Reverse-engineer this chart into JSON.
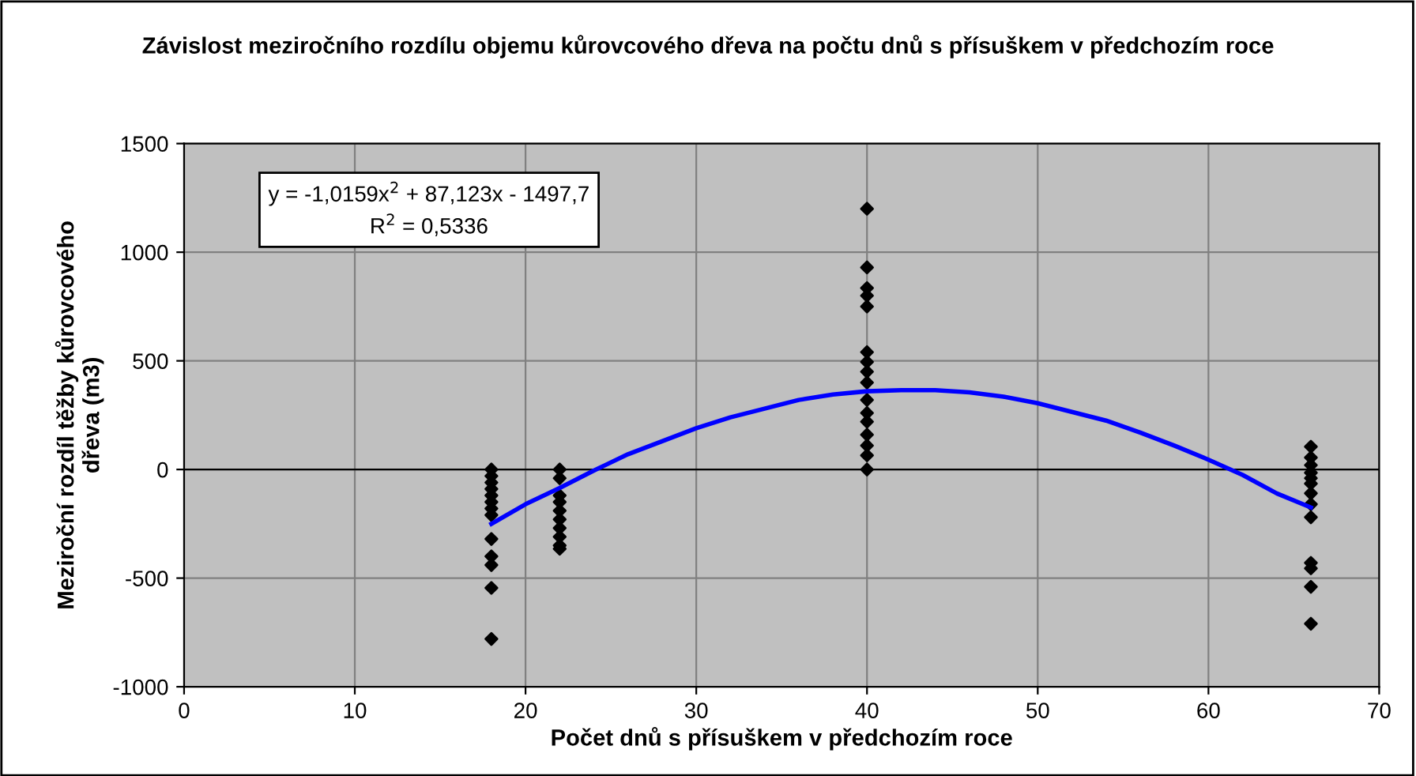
{
  "chart_data": {
    "type": "scatter",
    "title": "Závislost meziročního rozdílu objemu kůrovcového dřeva na počtu dnů s přísuškem v předchozím roce",
    "xlabel": "Počet dnů s přísuškem v předchozím roce",
    "ylabel": "Meziroční rozdíl těžby kůrovcového dřeva (m3)",
    "xlim": [
      0,
      70
    ],
    "xticks": [
      0,
      10,
      20,
      30,
      40,
      50,
      60,
      70
    ],
    "ylim": [
      -1000,
      1500
    ],
    "yticks": [
      -1000,
      -500,
      0,
      500,
      1000,
      1500
    ],
    "grid": true,
    "marker": "diamond",
    "legend": false,
    "annotations": [
      "y = -1,0159x$^{2}$ + 87,123x - 1497,7",
      "R$^{2}$ = 0,5336"
    ],
    "series": [
      {
        "color": "#000000",
        "x": [
          18,
          18,
          18,
          18,
          18,
          18,
          18,
          18,
          18,
          18,
          18,
          18,
          18,
          22,
          22,
          22,
          22,
          22,
          22,
          22,
          22,
          22,
          22,
          40,
          40,
          40,
          40,
          40,
          40,
          40,
          40,
          40,
          40,
          40,
          40,
          40,
          40,
          40,
          40,
          66,
          66,
          66,
          66,
          66,
          66,
          66,
          66,
          66,
          66,
          66,
          66,
          66
        ],
        "values": [
          0,
          -30,
          -60,
          -90,
          -120,
          -150,
          -180,
          -210,
          -320,
          -400,
          -440,
          -545,
          -780,
          0,
          -40,
          -120,
          -150,
          -190,
          -230,
          -270,
          -310,
          -365,
          -350,
          1200,
          930,
          835,
          800,
          750,
          540,
          495,
          450,
          400,
          320,
          260,
          220,
          160,
          110,
          65,
          0,
          105,
          55,
          20,
          -15,
          -40,
          -65,
          -110,
          -160,
          -220,
          -430,
          -455,
          -540,
          -710
        ]
      },
      {
        "type": "line",
        "color": "#0000ff",
        "marker": "none",
        "x": [
          18,
          20,
          22,
          24,
          26,
          28,
          30,
          32,
          34,
          36,
          38,
          40,
          42,
          44,
          46,
          48,
          50,
          52,
          54,
          56,
          58,
          60,
          62,
          64,
          66
        ],
        "values": [
          -250,
          -160,
          -85,
          -5,
          70,
          130,
          190,
          240,
          280,
          320,
          345,
          360,
          365,
          365,
          355,
          335,
          305,
          265,
          225,
          170,
          110,
          45,
          -25,
          -110,
          -175
        ]
      }
    ]
  }
}
